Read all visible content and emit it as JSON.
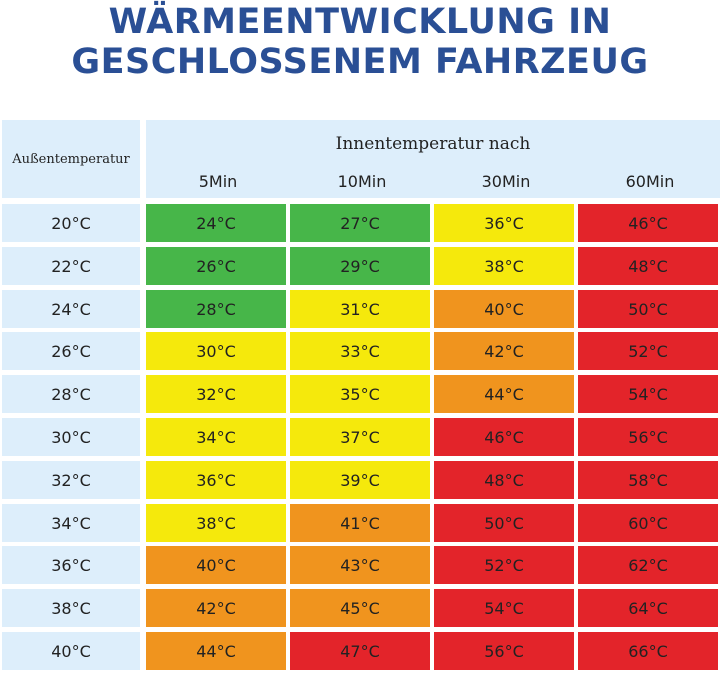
{
  "title": {
    "line1": "WÄRMEENTWICKLUNG IN",
    "line2": "GESCHLOSSENEM FAHRZEUG",
    "color": "#2a4f95"
  },
  "header": {
    "left": "Außentemperatur",
    "caption": "Innentemperatur nach",
    "columns": [
      "5Min",
      "10Min",
      "30Min",
      "60Min"
    ]
  },
  "colors": {
    "green": "#47b649",
    "yellow": "#f5e90c",
    "orange": "#f0941e",
    "red": "#e3242a",
    "label_bg": "#ddeefb"
  },
  "rows": [
    {
      "outside": "20°C",
      "cells": [
        {
          "v": "24°C",
          "c": "green"
        },
        {
          "v": "27°C",
          "c": "green"
        },
        {
          "v": "36°C",
          "c": "yellow"
        },
        {
          "v": "46°C",
          "c": "red"
        }
      ]
    },
    {
      "outside": "22°C",
      "cells": [
        {
          "v": "26°C",
          "c": "green"
        },
        {
          "v": "29°C",
          "c": "green"
        },
        {
          "v": "38°C",
          "c": "yellow"
        },
        {
          "v": "48°C",
          "c": "red"
        }
      ]
    },
    {
      "outside": "24°C",
      "cells": [
        {
          "v": "28°C",
          "c": "green"
        },
        {
          "v": "31°C",
          "c": "yellow"
        },
        {
          "v": "40°C",
          "c": "orange"
        },
        {
          "v": "50°C",
          "c": "red"
        }
      ]
    },
    {
      "outside": "26°C",
      "cells": [
        {
          "v": "30°C",
          "c": "yellow"
        },
        {
          "v": "33°C",
          "c": "yellow"
        },
        {
          "v": "42°C",
          "c": "orange"
        },
        {
          "v": "52°C",
          "c": "red"
        }
      ]
    },
    {
      "outside": "28°C",
      "cells": [
        {
          "v": "32°C",
          "c": "yellow"
        },
        {
          "v": "35°C",
          "c": "yellow"
        },
        {
          "v": "44°C",
          "c": "orange"
        },
        {
          "v": "54°C",
          "c": "red"
        }
      ]
    },
    {
      "outside": "30°C",
      "cells": [
        {
          "v": "34°C",
          "c": "yellow"
        },
        {
          "v": "37°C",
          "c": "yellow"
        },
        {
          "v": "46°C",
          "c": "red"
        },
        {
          "v": "56°C",
          "c": "red"
        }
      ]
    },
    {
      "outside": "32°C",
      "cells": [
        {
          "v": "36°C",
          "c": "yellow"
        },
        {
          "v": "39°C",
          "c": "yellow"
        },
        {
          "v": "48°C",
          "c": "red"
        },
        {
          "v": "58°C",
          "c": "red"
        }
      ]
    },
    {
      "outside": "34°C",
      "cells": [
        {
          "v": "38°C",
          "c": "yellow"
        },
        {
          "v": "41°C",
          "c": "orange"
        },
        {
          "v": "50°C",
          "c": "red"
        },
        {
          "v": "60°C",
          "c": "red"
        }
      ]
    },
    {
      "outside": "36°C",
      "cells": [
        {
          "v": "40°C",
          "c": "orange"
        },
        {
          "v": "43°C",
          "c": "orange"
        },
        {
          "v": "52°C",
          "c": "red"
        },
        {
          "v": "62°C",
          "c": "red"
        }
      ]
    },
    {
      "outside": "38°C",
      "cells": [
        {
          "v": "42°C",
          "c": "orange"
        },
        {
          "v": "45°C",
          "c": "orange"
        },
        {
          "v": "54°C",
          "c": "red"
        },
        {
          "v": "64°C",
          "c": "red"
        }
      ]
    },
    {
      "outside": "40°C",
      "cells": [
        {
          "v": "44°C",
          "c": "orange"
        },
        {
          "v": "47°C",
          "c": "red"
        },
        {
          "v": "56°C",
          "c": "red"
        },
        {
          "v": "66°C",
          "c": "red"
        }
      ]
    }
  ]
}
